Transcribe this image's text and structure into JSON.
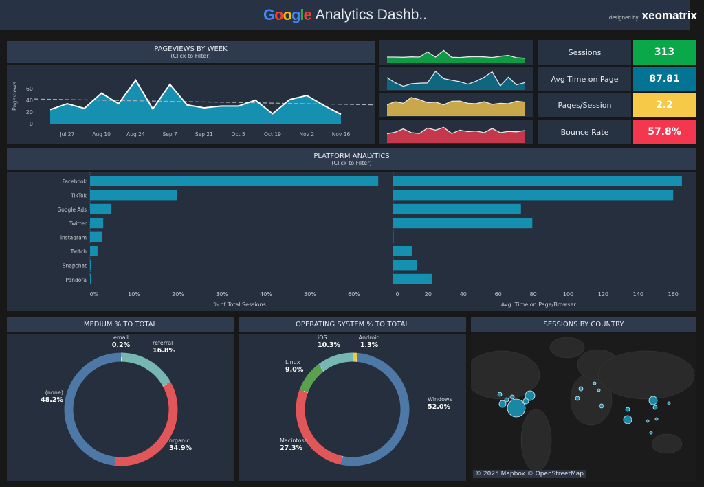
{
  "header": {
    "logo_text": "Google",
    "title": "Analytics Dashb..",
    "designed_by": "designed by",
    "brand": "xeomatrix"
  },
  "pageviews": {
    "title": "PAGEVIEWS BY WEEK",
    "subtitle": "(Click to Filter)"
  },
  "platform": {
    "title": "PLATFORM ANALYTICS",
    "subtitle": "(Click to Filter)"
  },
  "medium": {
    "title": "MEDIUM % TO TOTAL"
  },
  "os": {
    "title": "OPERATING SYSTEM % TO TOTAL"
  },
  "country": {
    "title": "SESSIONS BY COUNTRY",
    "attribution": "© 2025 Mapbox © OpenStreetMap"
  },
  "kpis": [
    {
      "label": "Sessions",
      "value": "313",
      "color": "#0ba84a",
      "spark_color": "#0f9a46",
      "spark": [
        30,
        30,
        29,
        31,
        30,
        55,
        30,
        62,
        29,
        28,
        31,
        32,
        31,
        28,
        34,
        38,
        27,
        24
      ]
    },
    {
      "label": "Avg Time on Page",
      "value": "87.81",
      "color": "#047494",
      "spark_color": "#10667f",
      "spark": [
        60,
        35,
        18,
        30,
        33,
        34,
        90,
        55,
        47,
        40,
        28,
        42,
        62,
        88,
        20,
        62,
        25,
        35
      ]
    },
    {
      "label": "Pages/Session",
      "value": "2.2",
      "color": "#f7c948",
      "spark_color": "#c9a84b",
      "spark": [
        55,
        70,
        62,
        90,
        80,
        65,
        68,
        55,
        72,
        73,
        62,
        60,
        70,
        57,
        62,
        60,
        72,
        68
      ]
    },
    {
      "label": "Bounce Rate",
      "value": "57.8%",
      "color": "#f5364f",
      "spark_color": "#c5374a",
      "spark": [
        45,
        52,
        68,
        50,
        46,
        72,
        62,
        75,
        46,
        62,
        55,
        58,
        50,
        70,
        50,
        56,
        54,
        60
      ]
    }
  ],
  "chart_data": [
    {
      "type": "area",
      "title": "PAGEVIEWS BY WEEK",
      "ylabel": "Pageviews",
      "ylim": [
        0,
        75
      ],
      "yticks": [
        0,
        20,
        40,
        60
      ],
      "x": [
        "Jul 20",
        "Jul 27",
        "Aug 3",
        "Aug 10",
        "Aug 17",
        "Aug 24",
        "Aug 31",
        "Sep 7",
        "Sep 14",
        "Sep 21",
        "Sep 28",
        "Oct 5",
        "Oct 12",
        "Oct 19",
        "Oct 26",
        "Nov 2",
        "Nov 9",
        "Nov 16"
      ],
      "xtick_labels": [
        "Jul 27",
        "Aug 10",
        "Aug 24",
        "Sep 7",
        "Sep 21",
        "Oct 5",
        "Oct 19",
        "Nov 2",
        "Nov 16"
      ],
      "values": [
        24,
        34,
        26,
        52,
        34,
        74,
        25,
        67,
        32,
        27,
        30,
        30,
        40,
        17,
        41,
        48,
        31,
        16
      ],
      "trend": [
        42,
        32
      ],
      "color": "#1590b0"
    },
    {
      "type": "bar",
      "orientation": "horizontal",
      "xlabel": "% of Total Sessions",
      "xlim": [
        0,
        68
      ],
      "xticks": [
        "0%",
        "10%",
        "20%",
        "30%",
        "40%",
        "50%",
        "60%"
      ],
      "categories": [
        "Facebook",
        "TikTok",
        "Google Ads",
        "Twitter",
        "Instagram",
        "Twitch",
        "Snapchat",
        "Pandora"
      ],
      "values": [
        65.5,
        19.7,
        4.8,
        3.0,
        2.7,
        1.7,
        0.3,
        0.3
      ],
      "color": "#1590b0"
    },
    {
      "type": "bar",
      "orientation": "horizontal",
      "xlabel": "Avg. Time on Page/Browser",
      "xlim": [
        0,
        166
      ],
      "xticks": [
        "0",
        "20",
        "40",
        "60",
        "80",
        "100",
        "120",
        "140",
        "160"
      ],
      "categories": [
        "Facebook",
        "TikTok",
        "Google Ads",
        "Twitter",
        "Instagram",
        "Twitch",
        "Snapchat",
        "Pandora"
      ],
      "values": [
        165,
        160,
        73,
        79.5,
        0,
        10.6,
        13.4,
        22
      ],
      "color": "#1590b0"
    },
    {
      "type": "pie",
      "title": "MEDIUM % TO TOTAL",
      "slices": [
        {
          "label": "email",
          "value": 0.2,
          "text": "0.2%",
          "color": "#76b7b2"
        },
        {
          "label": "referral",
          "value": 16.8,
          "text": "16.8%",
          "color": "#76b7b2"
        },
        {
          "label": "organic",
          "value": 34.9,
          "text": "34.9%",
          "color": "#e15759"
        },
        {
          "label": "(none)",
          "value": 48.2,
          "text": "48.2%",
          "color": "#4e79a7"
        }
      ]
    },
    {
      "type": "pie",
      "title": "OPERATING SYSTEM % TO TOTAL",
      "slices": [
        {
          "label": "Android",
          "value": 1.3,
          "text": "1.3%",
          "color": "#edc948"
        },
        {
          "label": "Windows",
          "value": 52.0,
          "text": "52.0%",
          "color": "#4e79a7"
        },
        {
          "label": "Macintosh",
          "value": 27.3,
          "text": "27.3%",
          "color": "#e15759"
        },
        {
          "label": "Linux",
          "value": 9.0,
          "text": "9.0%",
          "color": "#59a14f"
        },
        {
          "label": "iOS",
          "value": 10.3,
          "text": "10.3%",
          "color": "#76b7b2"
        }
      ]
    }
  ]
}
